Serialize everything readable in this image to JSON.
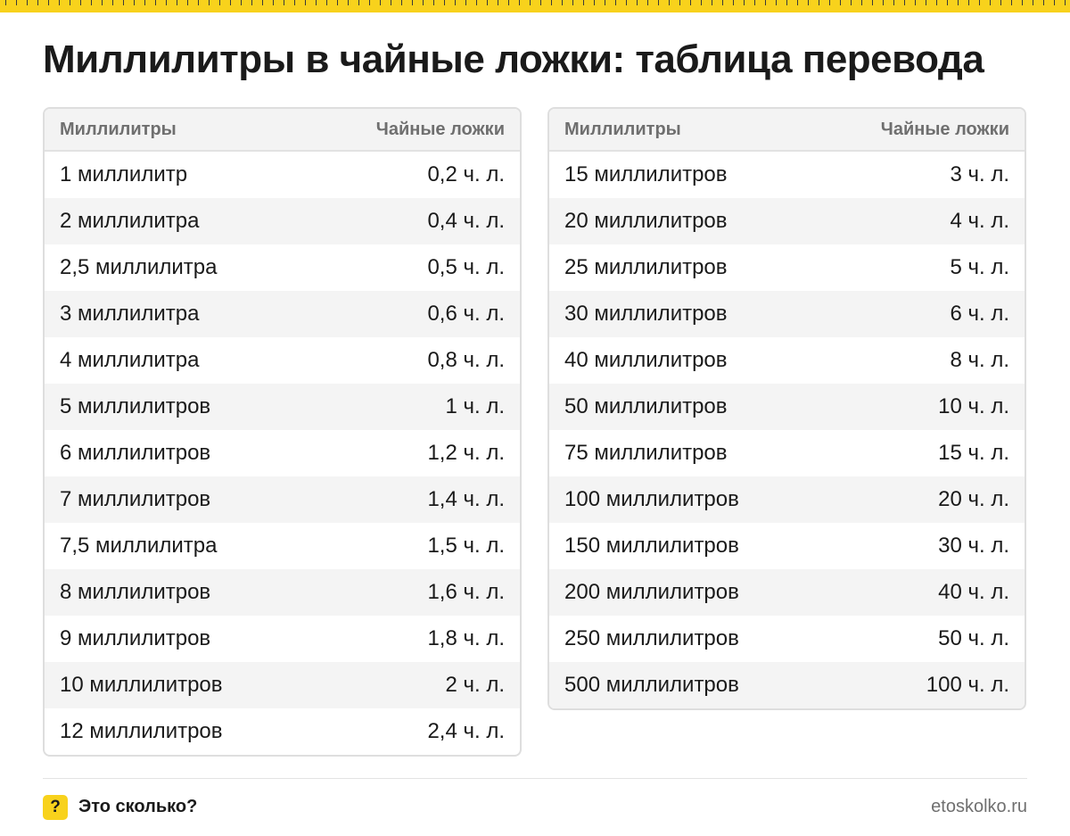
{
  "title": "Миллилитры в чайные ложки: таблица перевода",
  "columns": [
    "Миллилитры",
    "Чайные ложки"
  ],
  "left_rows": [
    [
      "1 миллилитр",
      "0,2 ч. л."
    ],
    [
      "2 миллилитра",
      "0,4 ч. л."
    ],
    [
      "2,5 миллилитра",
      "0,5 ч. л."
    ],
    [
      "3 миллилитра",
      "0,6 ч. л."
    ],
    [
      "4 миллилитра",
      "0,8 ч. л."
    ],
    [
      "5 миллилитров",
      "1 ч. л."
    ],
    [
      "6 миллилитров",
      "1,2 ч. л."
    ],
    [
      "7 миллилитров",
      "1,4 ч. л."
    ],
    [
      "7,5 миллилитра",
      "1,5 ч. л."
    ],
    [
      "8 миллилитров",
      "1,6 ч. л."
    ],
    [
      "9 миллилитров",
      "1,8 ч. л."
    ],
    [
      "10 миллилитров",
      "2 ч. л."
    ],
    [
      "12 миллилитров",
      "2,4 ч. л."
    ]
  ],
  "right_rows": [
    [
      "15 миллилитров",
      "3 ч. л."
    ],
    [
      "20 миллилитров",
      "4 ч. л."
    ],
    [
      "25 миллилитров",
      "5 ч. л."
    ],
    [
      "30 миллилитров",
      "6 ч. л."
    ],
    [
      "40 миллилитров",
      "8 ч. л."
    ],
    [
      "50 миллилитров",
      "10 ч. л."
    ],
    [
      "75 миллилитров",
      "15 ч. л."
    ],
    [
      "100 миллилитров",
      "20 ч. л."
    ],
    [
      "150 миллилитров",
      "30 ч. л."
    ],
    [
      "200 миллилитров",
      "40 ч. л."
    ],
    [
      "250 миллилитров",
      "50 ч. л."
    ],
    [
      "500 миллилитров",
      "100 ч. л."
    ]
  ],
  "footer": {
    "brand_icon_glyph": "?",
    "brand_name": "Это сколько?",
    "site": "etoskolko.ru"
  },
  "colors": {
    "accent": "#f8d21c",
    "text": "#1a1a1a",
    "muted": "#6f6f6f",
    "row_stripe": "#f4f4f4"
  }
}
